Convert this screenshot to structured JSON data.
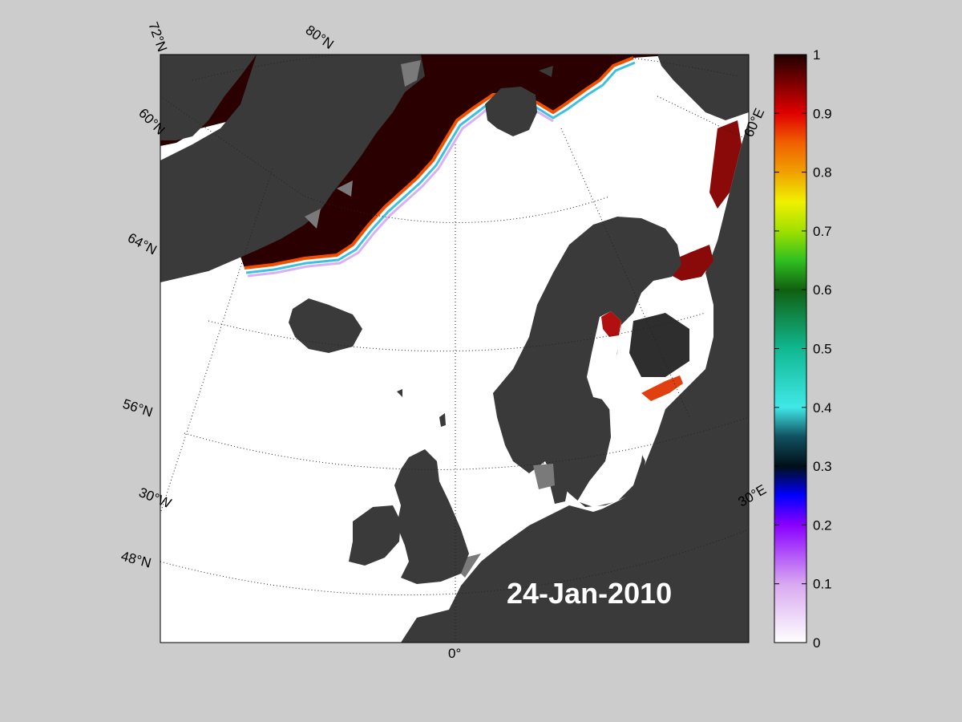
{
  "map": {
    "date_label": "24-Jan-2010",
    "colors": {
      "ocean_open": "#ffffff",
      "land": "#3a3a3a",
      "land_shadow": "#7a7a7a",
      "ice_pack": "#2a0000",
      "figure_background": "#cccccc"
    },
    "graticule_labels": {
      "lat_72": "72°N",
      "lat_80": "80°N",
      "lat_60_left": "60°N",
      "lat_64": "64°N",
      "lat_56": "56°N",
      "lat_48": "48°N",
      "lon_30w": "30°W",
      "lon_0": "0°",
      "lon_30e": "30°E",
      "lon_60e": "60°E"
    }
  },
  "colorbar": {
    "ticks": [
      "1",
      "0.9",
      "0.8",
      "0.7",
      "0.6",
      "0.5",
      "0.4",
      "0.3",
      "0.2",
      "0.1",
      "0"
    ],
    "range": [
      0,
      1
    ],
    "gradient_stops": [
      {
        "v": 0.0,
        "c": "#ffffff"
      },
      {
        "v": 0.1,
        "c": "#d8a8f0"
      },
      {
        "v": 0.2,
        "c": "#8a00ff"
      },
      {
        "v": 0.25,
        "c": "#0000ff"
      },
      {
        "v": 0.3,
        "c": "#001018"
      },
      {
        "v": 0.35,
        "c": "#105060"
      },
      {
        "v": 0.4,
        "c": "#40e8e8"
      },
      {
        "v": 0.5,
        "c": "#10b890"
      },
      {
        "v": 0.6,
        "c": "#106010"
      },
      {
        "v": 0.65,
        "c": "#30c020"
      },
      {
        "v": 0.7,
        "c": "#a0e000"
      },
      {
        "v": 0.75,
        "c": "#f0f000"
      },
      {
        "v": 0.8,
        "c": "#f0a000"
      },
      {
        "v": 0.85,
        "c": "#f06000"
      },
      {
        "v": 0.9,
        "c": "#e00000"
      },
      {
        "v": 0.95,
        "c": "#800000"
      },
      {
        "v": 1.0,
        "c": "#200000"
      }
    ]
  }
}
